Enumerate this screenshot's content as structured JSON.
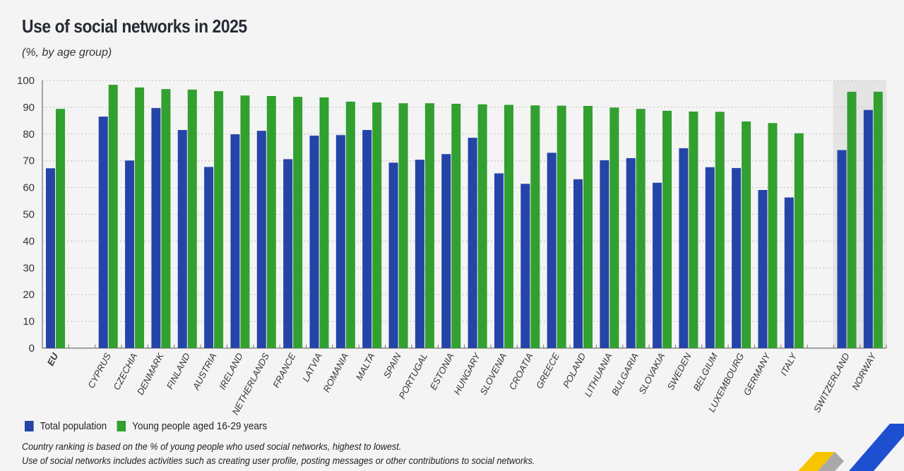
{
  "title": "Use of social networks in 2025",
  "subtitle": "(%, by age group)",
  "legend": [
    {
      "label": "Total population",
      "color": "#2444a8"
    },
    {
      "label": "Young people aged 16-29 years",
      "color": "#31a02f"
    }
  ],
  "notes": [
    "Country ranking is based on the % of young people who used social networks, highest to lowest.",
    "Use of social networks includes activities such as creating user profile, posting messages or other contributions to social networks."
  ],
  "chart_data": {
    "type": "bar",
    "title": "Use of social networks in 2025",
    "subtitle": "(%, by age group)",
    "ylim": [
      0,
      100
    ],
    "yticks": [
      0,
      10,
      20,
      30,
      40,
      50,
      60,
      70,
      80,
      90,
      100
    ],
    "grid": true,
    "legend_position": "bottom-left",
    "highlighted_group": [
      "SWITZERLAND",
      "NORWAY"
    ],
    "categories": [
      "EU",
      "CYPRUS",
      "CZECHIA",
      "DENMARK",
      "FINLAND",
      "AUSTRIA",
      "IRELAND",
      "NETHERLANDS",
      "FRANCE",
      "LATVIA",
      "ROMANIA",
      "MALTA",
      "SPAIN",
      "PORTUGAL",
      "ESTONIA",
      "HUNGARY",
      "SLOVENIA",
      "CROATIA",
      "GREECE",
      "POLAND",
      "LITHUANIA",
      "BULGARIA",
      "SLOVAKIA",
      "SWEDEN",
      "BELGIUM",
      "LUXEMBOURG",
      "GERMANY",
      "ITALY",
      "SWITZERLAND",
      "NORWAY"
    ],
    "series": [
      {
        "name": "Total population",
        "color": "#2444a8",
        "values": [
          67.2,
          86.5,
          70.1,
          89.7,
          81.5,
          67.7,
          79.9,
          81.2,
          70.6,
          79.4,
          79.6,
          81.5,
          69.3,
          70.4,
          72.5,
          78.6,
          65.3,
          61.4,
          73.0,
          63.1,
          70.2,
          71.0,
          61.8,
          74.7,
          67.6,
          67.3,
          59.1,
          56.3,
          74.0,
          89.0
        ]
      },
      {
        "name": "Young people aged 16-29 years",
        "color": "#31a02f",
        "values": [
          89.4,
          98.4,
          97.4,
          96.8,
          96.6,
          96.0,
          94.4,
          94.2,
          93.9,
          93.7,
          92.1,
          91.8,
          91.5,
          91.5,
          91.3,
          91.1,
          90.9,
          90.7,
          90.6,
          90.5,
          89.9,
          89.4,
          88.7,
          88.4,
          88.3,
          84.7,
          84.1,
          80.3,
          95.8,
          95.8
        ]
      }
    ]
  }
}
